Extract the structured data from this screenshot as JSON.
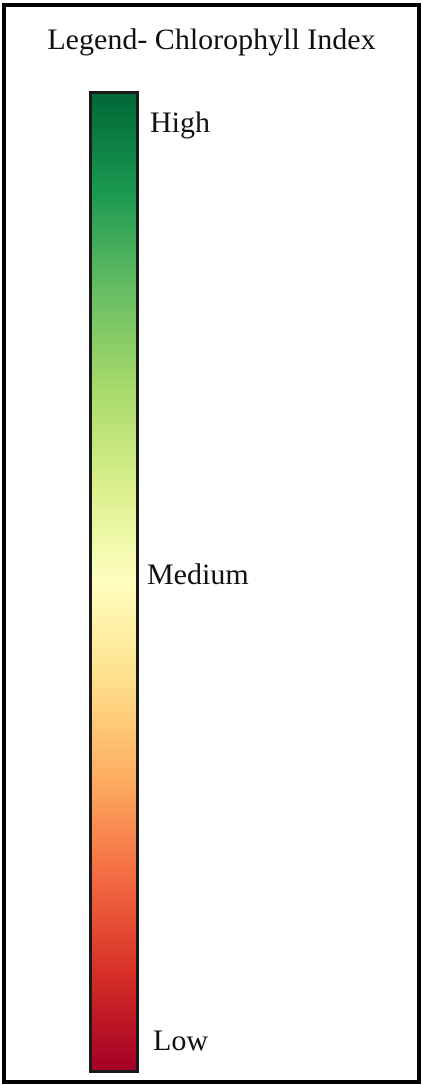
{
  "legend": {
    "title": "Legend- Chlorophyll Index",
    "labels": {
      "high": "High",
      "medium": "Medium",
      "low": "Low"
    },
    "color_stops": [
      {
        "position": 0.0,
        "color": "#006837"
      },
      {
        "position": 0.1,
        "color": "#1a9850"
      },
      {
        "position": 0.2,
        "color": "#66bd63"
      },
      {
        "position": 0.3,
        "color": "#a6d96a"
      },
      {
        "position": 0.4,
        "color": "#d9ef8b"
      },
      {
        "position": 0.5,
        "color": "#ffffbf"
      },
      {
        "position": 0.6,
        "color": "#fee08b"
      },
      {
        "position": 0.7,
        "color": "#fdae61"
      },
      {
        "position": 0.8,
        "color": "#f46d43"
      },
      {
        "position": 0.9,
        "color": "#d73027"
      },
      {
        "position": 1.0,
        "color": "#a50026"
      }
    ],
    "border_color": "#000000"
  }
}
